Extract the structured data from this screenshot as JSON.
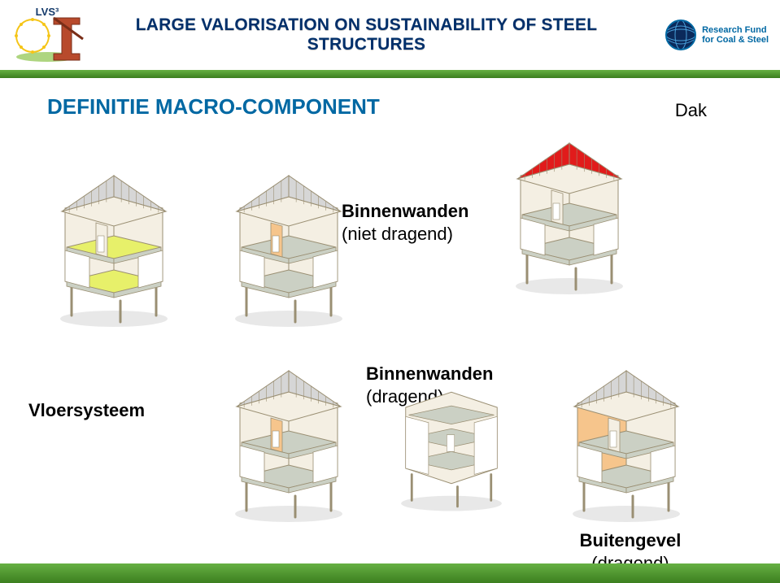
{
  "header": {
    "title": "LARGE VALORISATION ON SUSTAINABILITY OF STEEL STRUCTURES",
    "lvs_badge": "LVS³",
    "rfcs_line1": "Research Fund",
    "rfcs_line2": "for Coal & Steel"
  },
  "section_title": {
    "text": "DEFINITIE MACRO-COMPONENT",
    "color": "#0068a3"
  },
  "labels": {
    "dak": "Dak",
    "binnen_nl_1": "Binnenwanden",
    "binnen_nl_2": "(niet dragend)",
    "vloer": "Vloersysteem",
    "binnen_l_1": "Binnenwanden",
    "binnen_l_2": "(dragend)",
    "buiten_1": "Buitengevel",
    "buiten_2": "(dragend)"
  },
  "palette": {
    "wall_fill": "#f4efe3",
    "wall_stroke": "#9a8f73",
    "floor_slab": "#cbd0c4",
    "roof_light": "#d6d6d6",
    "roof_red": "#e11b1b",
    "hl_yellow": "#e7f06a",
    "hl_orange": "#f6c58c",
    "ground_shadow": "#e8e8e8",
    "blue_accent": "#0068a3"
  },
  "house_variants": {
    "floor": {
      "roof": "light",
      "floor_hl": true,
      "wall_hl": "none",
      "facade_hl": false,
      "cell": false
    },
    "int_nl": {
      "roof": "light",
      "floor_hl": false,
      "wall_hl": "orange",
      "facade_hl": false,
      "cell": false
    },
    "roof": {
      "roof": "red",
      "floor_hl": false,
      "wall_hl": "none",
      "facade_hl": false,
      "cell": false
    },
    "int_l": {
      "roof": "light",
      "floor_hl": false,
      "wall_hl": "orange",
      "facade_hl": false,
      "cell": false
    },
    "cell": {
      "roof": "none",
      "floor_hl": false,
      "wall_hl": "none",
      "facade_hl": false,
      "cell": true
    },
    "facade": {
      "roof": "light",
      "floor_hl": false,
      "wall_hl": "none",
      "facade_hl": true,
      "cell": false
    }
  }
}
